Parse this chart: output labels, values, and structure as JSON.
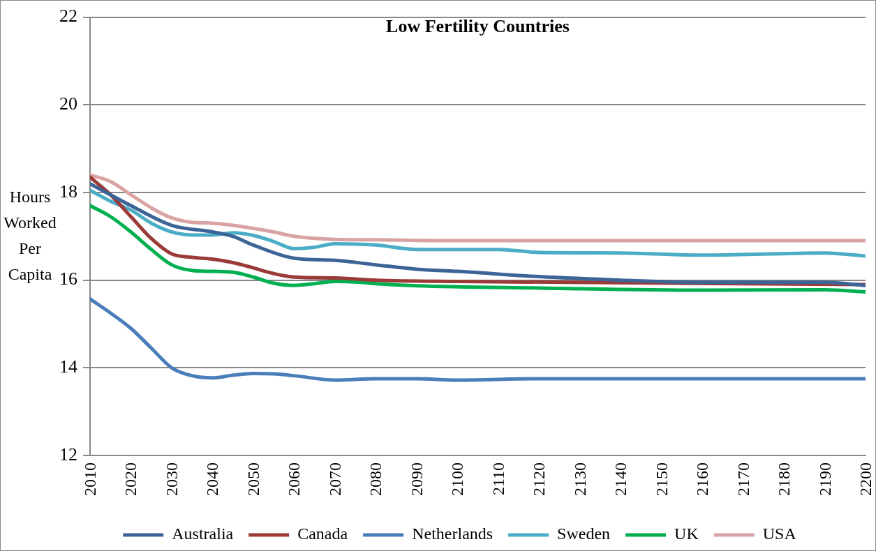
{
  "chart_data": {
    "type": "line",
    "title": "Low Fertility Countries",
    "ylabel": "Hours Worked Per Capita",
    "xlim": [
      2010,
      2200
    ],
    "xticks": [
      2010,
      2020,
      2030,
      2040,
      2050,
      2060,
      2070,
      2080,
      2090,
      2100,
      2110,
      2120,
      2130,
      2140,
      2150,
      2160,
      2170,
      2180,
      2190,
      2200
    ],
    "ylim": [
      12,
      22
    ],
    "yticks": [
      12,
      14,
      16,
      18,
      20,
      22
    ],
    "grid": "y",
    "legend": "bottom",
    "marker": "none",
    "line_style": "solid",
    "series": [
      {
        "name": "Australia",
        "color": "#3c6496",
        "x": [
          2010,
          2020,
          2030,
          2040,
          2045,
          2050,
          2060,
          2070,
          2080,
          2090,
          2100,
          2120,
          2140,
          2160,
          2190,
          2200
        ],
        "values": [
          18.2,
          17.7,
          17.25,
          17.1,
          17.0,
          16.8,
          16.5,
          16.45,
          16.35,
          16.25,
          16.2,
          16.08,
          16.0,
          15.95,
          15.95,
          15.88
        ]
      },
      {
        "name": "Canada",
        "color": "#9b3b38",
        "x": [
          2010,
          2015,
          2020,
          2025,
          2030,
          2035,
          2040,
          2045,
          2050,
          2055,
          2060,
          2070,
          2080,
          2100,
          2200
        ],
        "values": [
          18.35,
          17.95,
          17.45,
          16.95,
          16.6,
          16.52,
          16.48,
          16.4,
          16.28,
          16.15,
          16.07,
          16.05,
          16.0,
          15.97,
          15.9
        ]
      },
      {
        "name": "Netherlands",
        "color": "#4a7ebb",
        "x": [
          2010,
          2015,
          2020,
          2025,
          2030,
          2035,
          2040,
          2045,
          2050,
          2055,
          2060,
          2070,
          2080,
          2090,
          2100,
          2120,
          2140,
          2160,
          2200
        ],
        "values": [
          15.57,
          15.25,
          14.9,
          14.45,
          14.0,
          13.82,
          13.77,
          13.83,
          13.87,
          13.86,
          13.82,
          13.72,
          13.75,
          13.75,
          13.72,
          13.75,
          13.75,
          13.75,
          13.75
        ]
      },
      {
        "name": "Sweden",
        "color": "#4bacc6",
        "x": [
          2010,
          2015,
          2020,
          2025,
          2030,
          2035,
          2040,
          2045,
          2050,
          2055,
          2060,
          2065,
          2070,
          2080,
          2090,
          2100,
          2110,
          2120,
          2140,
          2160,
          2190,
          2200
        ],
        "values": [
          18.05,
          17.8,
          17.6,
          17.3,
          17.1,
          17.03,
          17.03,
          17.08,
          17.02,
          16.88,
          16.72,
          16.75,
          16.83,
          16.8,
          16.7,
          16.7,
          16.7,
          16.63,
          16.62,
          16.57,
          16.62,
          16.55
        ]
      },
      {
        "name": "UK",
        "color": "#00b050",
        "x": [
          2010,
          2015,
          2020,
          2025,
          2030,
          2035,
          2040,
          2045,
          2050,
          2055,
          2060,
          2065,
          2070,
          2075,
          2080,
          2090,
          2120,
          2160,
          2190,
          2200
        ],
        "values": [
          17.7,
          17.45,
          17.1,
          16.7,
          16.35,
          16.22,
          16.2,
          16.18,
          16.07,
          15.93,
          15.88,
          15.92,
          15.97,
          15.96,
          15.92,
          15.87,
          15.82,
          15.77,
          15.78,
          15.73
        ]
      },
      {
        "name": "USA",
        "color": "#d9a3a3",
        "x": [
          2010,
          2015,
          2020,
          2025,
          2030,
          2035,
          2040,
          2045,
          2050,
          2055,
          2060,
          2070,
          2080,
          2100,
          2200
        ],
        "values": [
          18.4,
          18.25,
          17.95,
          17.65,
          17.42,
          17.32,
          17.3,
          17.25,
          17.18,
          17.1,
          17.0,
          16.93,
          16.92,
          16.9,
          16.9
        ]
      }
    ]
  }
}
